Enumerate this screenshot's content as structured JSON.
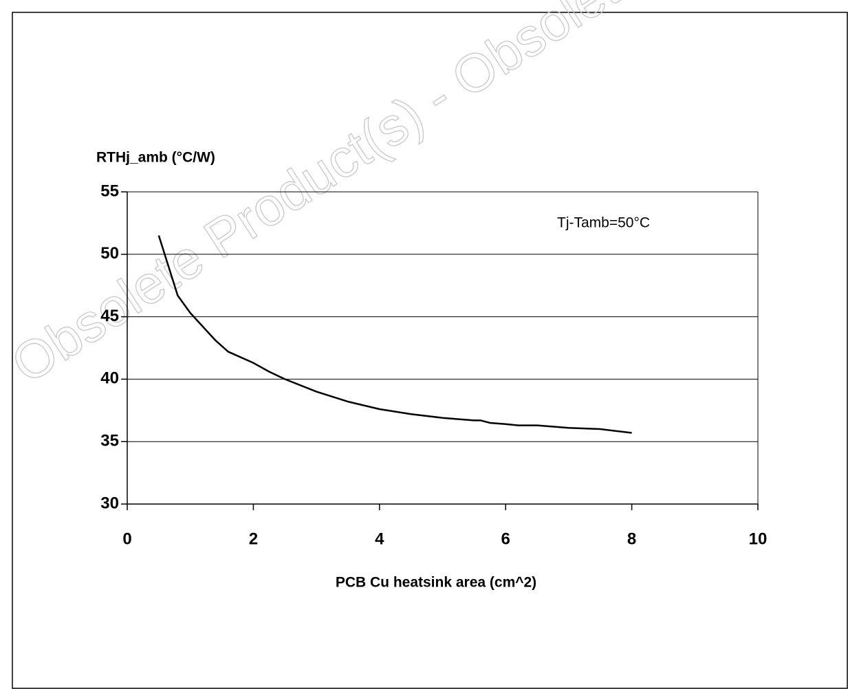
{
  "chart_data": {
    "type": "line",
    "ylabel": "RTHj_amb (°C/W)",
    "xlabel": "PCB Cu heatsink area (cm^2)",
    "annotation": "Tj-Tamb=50°C",
    "watermark": "Obsolete Product(s) - Obsolete",
    "x": [
      0.5,
      0.8,
      1.0,
      1.2,
      1.4,
      1.6,
      2.0,
      2.25,
      2.5,
      3.0,
      3.5,
      4.0,
      4.5,
      5.0,
      5.5,
      5.6,
      5.75,
      6.0,
      6.2,
      6.5,
      7.0,
      7.5,
      8.0
    ],
    "series": [
      {
        "name": "RTHj_amb",
        "color": "#000000",
        "values": [
          51.5,
          46.7,
          45.3,
          44.2,
          43.1,
          42.2,
          41.3,
          40.6,
          40.0,
          39.0,
          38.2,
          37.6,
          37.2,
          36.9,
          36.7,
          36.7,
          36.5,
          36.4,
          36.3,
          36.3,
          36.1,
          36.0,
          35.7
        ]
      }
    ],
    "xlim": [
      0,
      10
    ],
    "xticks": [
      0,
      2,
      4,
      6,
      8,
      10
    ],
    "ylim": [
      30,
      55
    ],
    "yticks": [
      30,
      35,
      40,
      45,
      50,
      55
    ],
    "grid": true
  }
}
